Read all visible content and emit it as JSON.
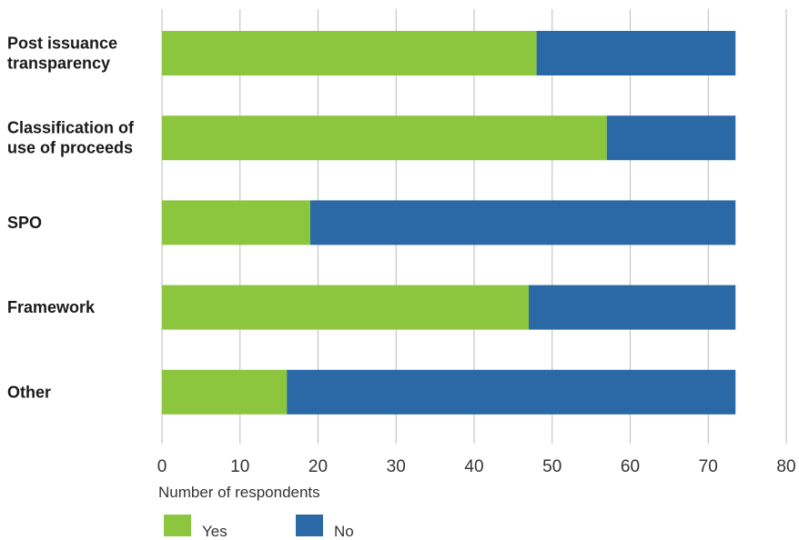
{
  "chart_data": {
    "type": "bar",
    "orientation": "horizontal",
    "stacked": true,
    "categories": [
      [
        "Post issuance",
        "transparency"
      ],
      [
        "Classification of",
        "use of proceeds"
      ],
      [
        "SPO"
      ],
      [
        "Framework"
      ],
      [
        "Other"
      ]
    ],
    "series": [
      {
        "name": "Yes",
        "color": "#8cc63f",
        "values": [
          48,
          57,
          19,
          47,
          16
        ]
      },
      {
        "name": "No",
        "color": "#2b69a6",
        "values": [
          25.5,
          16.5,
          54.5,
          26.5,
          57.5
        ]
      }
    ],
    "xlabel": "Number of respondents",
    "ylabel": "",
    "xlim": [
      0,
      80
    ],
    "xticks": [
      0,
      10,
      20,
      30,
      40,
      50,
      60,
      70,
      80
    ],
    "grid": "vertical",
    "grid_color": "#bbbbbb",
    "legend": "bottom-left"
  }
}
